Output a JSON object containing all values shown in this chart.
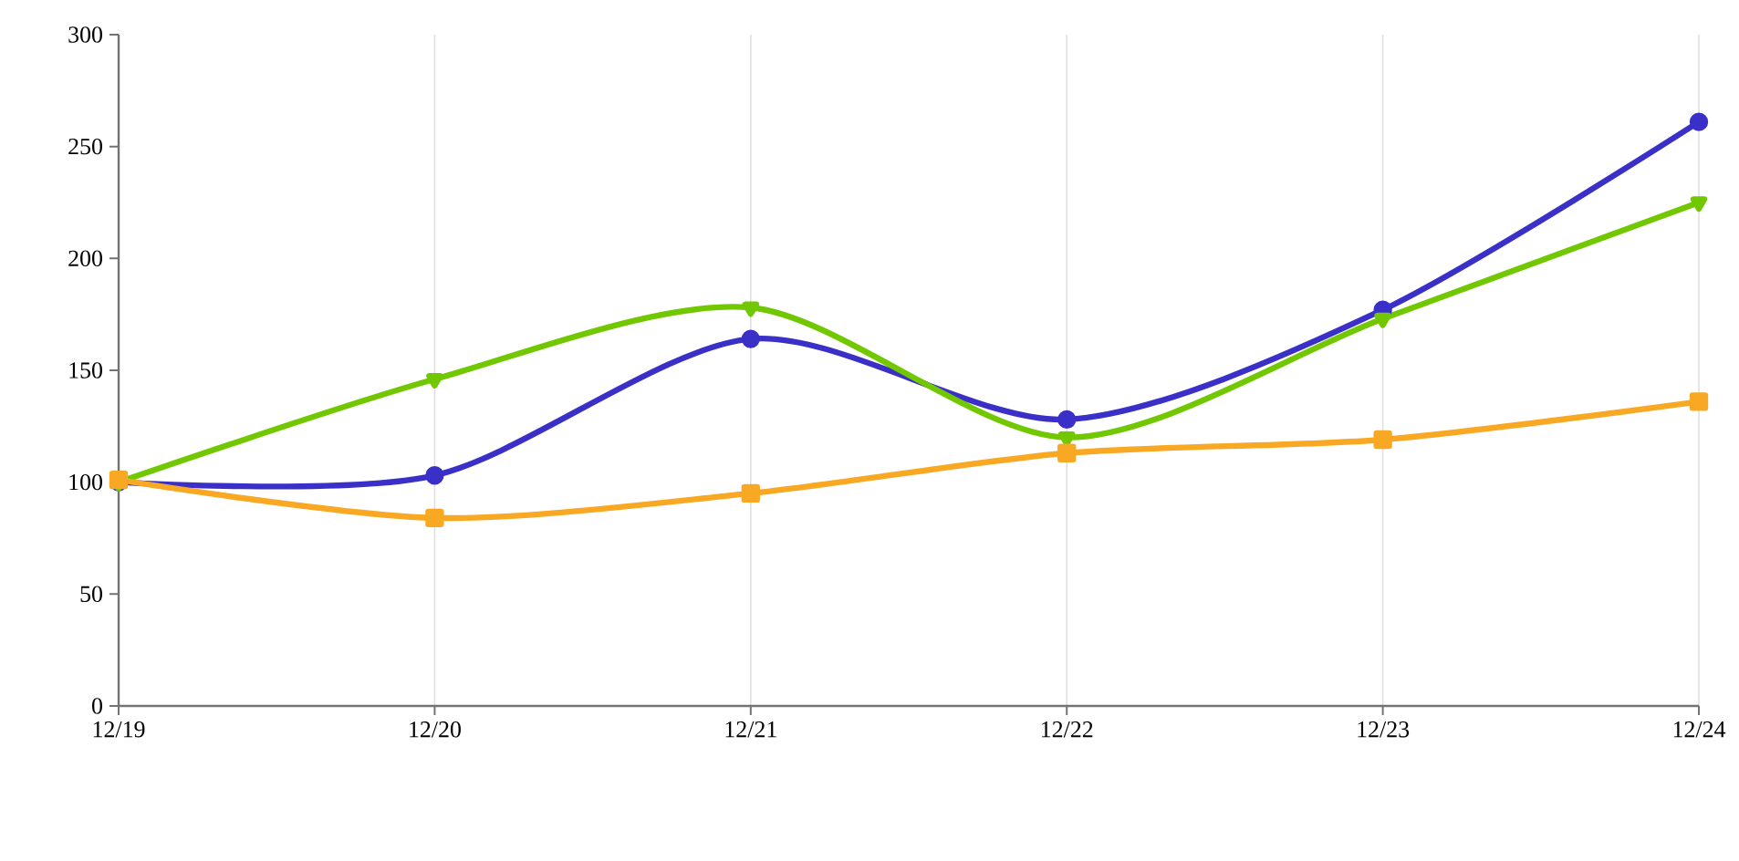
{
  "chart_data": {
    "type": "line",
    "categories": [
      "12/19",
      "12/20",
      "12/21",
      "12/22",
      "12/23",
      "12/24"
    ],
    "series": [
      {
        "color": "#3a30c8",
        "marker": "circle",
        "values": [
          100,
          103,
          164,
          128,
          177,
          261
        ]
      },
      {
        "color": "#72c800",
        "marker": "triangle",
        "values": [
          100,
          146,
          178,
          120,
          173,
          225
        ]
      },
      {
        "color": "#f8a823",
        "marker": "square",
        "values": [
          101,
          84,
          95,
          113,
          119,
          136
        ]
      }
    ],
    "ylim": [
      0,
      300
    ],
    "yticks": [
      0,
      50,
      100,
      150,
      200,
      250,
      300
    ],
    "grid": "x"
  }
}
